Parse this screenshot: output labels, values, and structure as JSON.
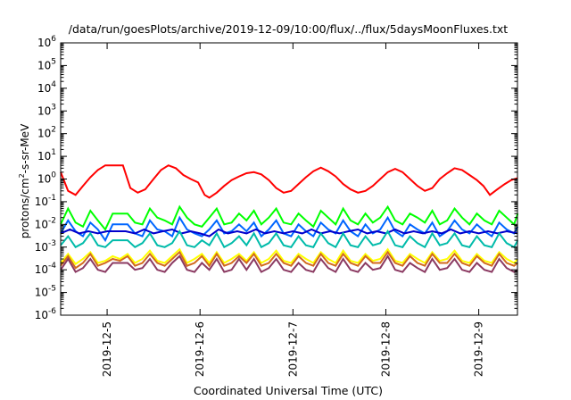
{
  "chart_data": {
    "type": "line",
    "title": "/data/run/goesPlots/archive/2019-12-09/10:00/flux/../flux/5daysMoonFluxes.txt",
    "xlabel": "Coordinated Universal Time (UTC)",
    "ylabel": {
      "before": "protons/cm",
      "sup": "2",
      "after": "-s-sr-MeV"
    },
    "yscale": "log",
    "ylim_exponents": [
      -6,
      6
    ],
    "ytick_exponents": [
      "-6",
      "-5",
      "-4",
      "-3",
      "-2",
      "-1",
      "0",
      "1",
      "2",
      "3",
      "4",
      "5",
      "6"
    ],
    "xlim_days": [
      "2019-12-04 12:00",
      "2019-12-09 10:00"
    ],
    "xticks": [
      "2019-12-5",
      "2019-12-6",
      "2019-12-7",
      "2019-12-8",
      "2019-12-9"
    ],
    "grid": false,
    "legend": "none",
    "series": [
      {
        "color": "#ff0000",
        "x_days": [
          4.5,
          4.58,
          4.66,
          4.74,
          4.82,
          4.9,
          4.98,
          5.05,
          5.1,
          5.17,
          5.25,
          5.33,
          5.41,
          5.5,
          5.58,
          5.66,
          5.74,
          5.82,
          5.9,
          5.98,
          6.05,
          6.1,
          6.18,
          6.26,
          6.34,
          6.42,
          6.5,
          6.58,
          6.66,
          6.74,
          6.82,
          6.9,
          6.98,
          7.06,
          7.14,
          7.22,
          7.3,
          7.38,
          7.46,
          7.54,
          7.62,
          7.7,
          7.78,
          7.86,
          7.94,
          8.02,
          8.1,
          8.18,
          8.26,
          8.34,
          8.42,
          8.5,
          8.58,
          8.66,
          8.74,
          8.82,
          8.9,
          8.98,
          9.05,
          9.12,
          9.2,
          9.28,
          9.35,
          9.42
        ],
        "y_values": [
          2.0,
          0.3,
          0.2,
          0.5,
          1.2,
          2.5,
          4.0,
          4.0,
          4.0,
          4.0,
          0.4,
          0.25,
          0.35,
          1.0,
          2.5,
          4.0,
          3.0,
          1.5,
          1.0,
          0.7,
          0.2,
          0.15,
          0.25,
          0.5,
          0.9,
          1.3,
          1.8,
          2.0,
          1.6,
          0.9,
          0.4,
          0.25,
          0.3,
          0.6,
          1.2,
          2.2,
          3.2,
          2.2,
          1.3,
          0.6,
          0.35,
          0.25,
          0.3,
          0.5,
          1.0,
          2.0,
          2.8,
          2.0,
          1.0,
          0.5,
          0.3,
          0.4,
          1.0,
          1.8,
          3.0,
          2.5,
          1.5,
          0.9,
          0.5,
          0.2,
          0.35,
          0.6,
          0.9,
          1.1
        ]
      },
      {
        "color": "#00ff00",
        "x_days": [
          4.5,
          4.58,
          4.66,
          4.74,
          4.82,
          4.9,
          4.98,
          5.06,
          5.14,
          5.22,
          5.3,
          5.38,
          5.46,
          5.54,
          5.62,
          5.7,
          5.78,
          5.86,
          5.94,
          6.02,
          6.1,
          6.18,
          6.26,
          6.34,
          6.42,
          6.5,
          6.58,
          6.66,
          6.74,
          6.82,
          6.9,
          6.98,
          7.06,
          7.14,
          7.22,
          7.3,
          7.38,
          7.46,
          7.54,
          7.62,
          7.7,
          7.78,
          7.86,
          7.94,
          8.02,
          8.1,
          8.18,
          8.26,
          8.34,
          8.42,
          8.5,
          8.58,
          8.66,
          8.74,
          8.82,
          8.9,
          8.98,
          9.06,
          9.14,
          9.22,
          9.3,
          9.38,
          9.42
        ],
        "y_values": [
          0.01,
          0.05,
          0.012,
          0.008,
          0.04,
          0.015,
          0.006,
          0.03,
          0.03,
          0.03,
          0.012,
          0.01,
          0.05,
          0.02,
          0.015,
          0.01,
          0.06,
          0.02,
          0.01,
          0.008,
          0.02,
          0.05,
          0.01,
          0.012,
          0.03,
          0.015,
          0.04,
          0.01,
          0.02,
          0.05,
          0.012,
          0.01,
          0.03,
          0.015,
          0.008,
          0.04,
          0.02,
          0.01,
          0.05,
          0.015,
          0.01,
          0.03,
          0.012,
          0.02,
          0.06,
          0.015,
          0.01,
          0.03,
          0.02,
          0.012,
          0.04,
          0.01,
          0.015,
          0.05,
          0.02,
          0.01,
          0.03,
          0.015,
          0.01,
          0.04,
          0.02,
          0.01,
          0.03
        ]
      },
      {
        "color": "#0066ff",
        "x_days": [
          4.5,
          4.58,
          4.66,
          4.74,
          4.82,
          4.9,
          4.98,
          5.06,
          5.14,
          5.22,
          5.3,
          5.38,
          5.46,
          5.54,
          5.62,
          5.7,
          5.78,
          5.86,
          5.94,
          6.02,
          6.1,
          6.18,
          6.26,
          6.34,
          6.42,
          6.5,
          6.58,
          6.66,
          6.74,
          6.82,
          6.9,
          6.98,
          7.06,
          7.14,
          7.22,
          7.3,
          7.38,
          7.46,
          7.54,
          7.62,
          7.7,
          7.78,
          7.86,
          7.94,
          8.02,
          8.1,
          8.18,
          8.26,
          8.34,
          8.42,
          8.5,
          8.58,
          8.66,
          8.74,
          8.82,
          8.9,
          8.98,
          9.06,
          9.14,
          9.22,
          9.3,
          9.38,
          9.42
        ],
        "y_values": [
          0.004,
          0.015,
          0.005,
          0.003,
          0.012,
          0.006,
          0.002,
          0.01,
          0.01,
          0.01,
          0.004,
          0.003,
          0.015,
          0.006,
          0.005,
          0.003,
          0.02,
          0.006,
          0.004,
          0.003,
          0.006,
          0.015,
          0.004,
          0.005,
          0.01,
          0.005,
          0.012,
          0.003,
          0.006,
          0.015,
          0.004,
          0.003,
          0.01,
          0.005,
          0.003,
          0.012,
          0.006,
          0.004,
          0.015,
          0.005,
          0.003,
          0.01,
          0.004,
          0.006,
          0.02,
          0.005,
          0.003,
          0.01,
          0.006,
          0.004,
          0.012,
          0.003,
          0.005,
          0.015,
          0.006,
          0.004,
          0.01,
          0.005,
          0.003,
          0.012,
          0.006,
          0.004,
          0.008
        ]
      },
      {
        "color": "#0000cc",
        "x_days": [
          4.5,
          4.6,
          4.7,
          4.8,
          4.9,
          5.0,
          5.1,
          5.2,
          5.3,
          5.4,
          5.5,
          5.6,
          5.7,
          5.8,
          5.9,
          6.0,
          6.1,
          6.2,
          6.3,
          6.4,
          6.5,
          6.6,
          6.7,
          6.8,
          6.9,
          7.0,
          7.1,
          7.2,
          7.3,
          7.4,
          7.5,
          7.6,
          7.7,
          7.8,
          7.9,
          8.0,
          8.1,
          8.2,
          8.3,
          8.4,
          8.5,
          8.6,
          8.7,
          8.8,
          8.9,
          9.0,
          9.1,
          9.2,
          9.3,
          9.42
        ],
        "y_values": [
          0.004,
          0.006,
          0.004,
          0.005,
          0.004,
          0.005,
          0.005,
          0.005,
          0.004,
          0.006,
          0.004,
          0.005,
          0.006,
          0.004,
          0.005,
          0.004,
          0.003,
          0.006,
          0.004,
          0.005,
          0.004,
          0.006,
          0.004,
          0.005,
          0.004,
          0.005,
          0.004,
          0.006,
          0.004,
          0.005,
          0.004,
          0.005,
          0.006,
          0.004,
          0.005,
          0.004,
          0.006,
          0.004,
          0.005,
          0.004,
          0.005,
          0.004,
          0.006,
          0.004,
          0.005,
          0.004,
          0.005,
          0.004,
          0.005,
          0.004
        ]
      },
      {
        "color": "#00bbaa",
        "x_days": [
          4.5,
          4.58,
          4.66,
          4.74,
          4.82,
          4.9,
          4.98,
          5.06,
          5.14,
          5.22,
          5.3,
          5.38,
          5.46,
          5.54,
          5.62,
          5.7,
          5.78,
          5.86,
          5.94,
          6.02,
          6.1,
          6.18,
          6.26,
          6.34,
          6.42,
          6.5,
          6.58,
          6.66,
          6.74,
          6.82,
          6.9,
          6.98,
          7.06,
          7.14,
          7.22,
          7.3,
          7.38,
          7.46,
          7.54,
          7.62,
          7.7,
          7.78,
          7.86,
          7.94,
          8.02,
          8.1,
          8.18,
          8.26,
          8.34,
          8.42,
          8.5,
          8.58,
          8.66,
          8.74,
          8.82,
          8.9,
          8.98,
          9.06,
          9.14,
          9.22,
          9.3,
          9.38,
          9.42
        ],
        "y_values": [
          0.0012,
          0.003,
          0.001,
          0.0015,
          0.004,
          0.0012,
          0.001,
          0.002,
          0.002,
          0.002,
          0.001,
          0.0015,
          0.004,
          0.0012,
          0.001,
          0.0015,
          0.005,
          0.0012,
          0.001,
          0.002,
          0.0012,
          0.004,
          0.001,
          0.0015,
          0.003,
          0.0012,
          0.004,
          0.001,
          0.0015,
          0.004,
          0.0012,
          0.001,
          0.003,
          0.0012,
          0.001,
          0.004,
          0.0015,
          0.001,
          0.004,
          0.0012,
          0.001,
          0.003,
          0.0012,
          0.0015,
          0.005,
          0.0012,
          0.001,
          0.003,
          0.0015,
          0.001,
          0.004,
          0.0012,
          0.0015,
          0.004,
          0.0012,
          0.001,
          0.003,
          0.0012,
          0.001,
          0.004,
          0.0015,
          0.001,
          0.002
        ]
      },
      {
        "color": "#ffff00",
        "x_days": [
          4.5,
          4.58,
          4.66,
          4.74,
          4.82,
          4.9,
          4.98,
          5.06,
          5.14,
          5.22,
          5.3,
          5.38,
          5.46,
          5.54,
          5.62,
          5.7,
          5.78,
          5.86,
          5.94,
          6.02,
          6.1,
          6.18,
          6.26,
          6.34,
          6.42,
          6.5,
          6.58,
          6.66,
          6.74,
          6.82,
          6.9,
          6.98,
          7.06,
          7.14,
          7.22,
          7.3,
          7.38,
          7.46,
          7.54,
          7.62,
          7.7,
          7.78,
          7.86,
          7.94,
          8.02,
          8.1,
          8.18,
          8.26,
          8.34,
          8.42,
          8.5,
          8.58,
          8.66,
          8.74,
          8.82,
          8.9,
          8.98,
          9.06,
          9.14,
          9.22,
          9.3,
          9.38,
          9.42
        ],
        "y_values": [
          0.0002,
          0.0005,
          0.00018,
          0.0003,
          0.0006,
          0.0002,
          0.00025,
          0.0004,
          0.0003,
          0.0005,
          0.0002,
          0.0003,
          0.0007,
          0.00025,
          0.0002,
          0.0004,
          0.0008,
          0.0002,
          0.0003,
          0.0005,
          0.0002,
          0.0006,
          0.0002,
          0.0003,
          0.0005,
          0.00025,
          0.0006,
          0.0002,
          0.0003,
          0.0007,
          0.00025,
          0.0002,
          0.0005,
          0.0003,
          0.0002,
          0.0006,
          0.0003,
          0.0002,
          0.0007,
          0.00025,
          0.0002,
          0.0005,
          0.00025,
          0.0003,
          0.0008,
          0.00025,
          0.0002,
          0.0005,
          0.0003,
          0.0002,
          0.0006,
          0.00025,
          0.0003,
          0.0007,
          0.00025,
          0.0002,
          0.0005,
          0.00025,
          0.0002,
          0.0006,
          0.0003,
          0.0002,
          0.0003
        ]
      },
      {
        "color": "#d2691e",
        "x_days": [
          4.5,
          4.58,
          4.66,
          4.74,
          4.82,
          4.9,
          4.98,
          5.06,
          5.14,
          5.22,
          5.3,
          5.38,
          5.46,
          5.54,
          5.62,
          5.7,
          5.78,
          5.86,
          5.94,
          6.02,
          6.1,
          6.18,
          6.26,
          6.34,
          6.42,
          6.5,
          6.58,
          6.66,
          6.74,
          6.82,
          6.9,
          6.98,
          7.06,
          7.14,
          7.22,
          7.3,
          7.38,
          7.46,
          7.54,
          7.62,
          7.7,
          7.78,
          7.86,
          7.94,
          8.02,
          8.1,
          8.18,
          8.26,
          8.34,
          8.42,
          8.5,
          8.58,
          8.66,
          8.74,
          8.82,
          8.9,
          8.98,
          9.06,
          9.14,
          9.22,
          9.3,
          9.38,
          9.42
        ],
        "y_values": [
          0.00015,
          0.0004,
          0.00012,
          0.0002,
          0.0005,
          0.00015,
          0.0002,
          0.0003,
          0.00025,
          0.0004,
          0.00015,
          0.0002,
          0.0005,
          0.0002,
          0.00015,
          0.0003,
          0.0006,
          0.00015,
          0.0002,
          0.0004,
          0.00015,
          0.0005,
          0.00015,
          0.0002,
          0.0004,
          0.0002,
          0.0005,
          0.00015,
          0.0002,
          0.0005,
          0.0002,
          0.00015,
          0.0004,
          0.0002,
          0.00015,
          0.0005,
          0.0002,
          0.00015,
          0.0005,
          0.0002,
          0.00015,
          0.0004,
          0.0002,
          0.0002,
          0.0006,
          0.0002,
          0.00015,
          0.0004,
          0.0002,
          0.00015,
          0.0005,
          0.0002,
          0.0002,
          0.0005,
          0.0002,
          0.00015,
          0.0004,
          0.0002,
          0.00015,
          0.0005,
          0.0002,
          0.00015,
          0.0002
        ]
      },
      {
        "color": "#8b3a62",
        "x_days": [
          4.5,
          4.58,
          4.66,
          4.74,
          4.82,
          4.9,
          4.98,
          5.06,
          5.14,
          5.22,
          5.3,
          5.38,
          5.46,
          5.54,
          5.62,
          5.7,
          5.78,
          5.86,
          5.94,
          6.02,
          6.1,
          6.18,
          6.26,
          6.34,
          6.42,
          6.5,
          6.58,
          6.66,
          6.74,
          6.82,
          6.9,
          6.98,
          7.06,
          7.14,
          7.22,
          7.3,
          7.38,
          7.46,
          7.54,
          7.62,
          7.7,
          7.78,
          7.86,
          7.94,
          8.02,
          8.1,
          8.18,
          8.26,
          8.34,
          8.42,
          8.5,
          8.58,
          8.66,
          8.74,
          8.82,
          8.9,
          8.98,
          9.06,
          9.14,
          9.22,
          9.3,
          9.38,
          9.42
        ],
        "y_values": [
          0.0001,
          0.0003,
          8e-05,
          0.00012,
          0.0003,
          0.0001,
          8e-05,
          0.0002,
          0.0002,
          0.0002,
          0.0001,
          0.00012,
          0.0003,
          0.0001,
          8e-05,
          0.0002,
          0.0004,
          0.0001,
          8e-05,
          0.0002,
          0.0001,
          0.0003,
          8e-05,
          0.0001,
          0.0003,
          0.0001,
          0.0003,
          8e-05,
          0.00012,
          0.0003,
          0.0001,
          8e-05,
          0.0002,
          0.0001,
          8e-05,
          0.0003,
          0.00012,
          8e-05,
          0.0003,
          0.0001,
          8e-05,
          0.0002,
          0.0001,
          0.00012,
          0.0004,
          0.0001,
          8e-05,
          0.0002,
          0.00012,
          8e-05,
          0.0003,
          0.0001,
          0.00012,
          0.0003,
          0.0001,
          8e-05,
          0.0002,
          0.0001,
          8e-05,
          0.0003,
          0.00012,
          8e-05,
          0.0001
        ]
      }
    ]
  }
}
